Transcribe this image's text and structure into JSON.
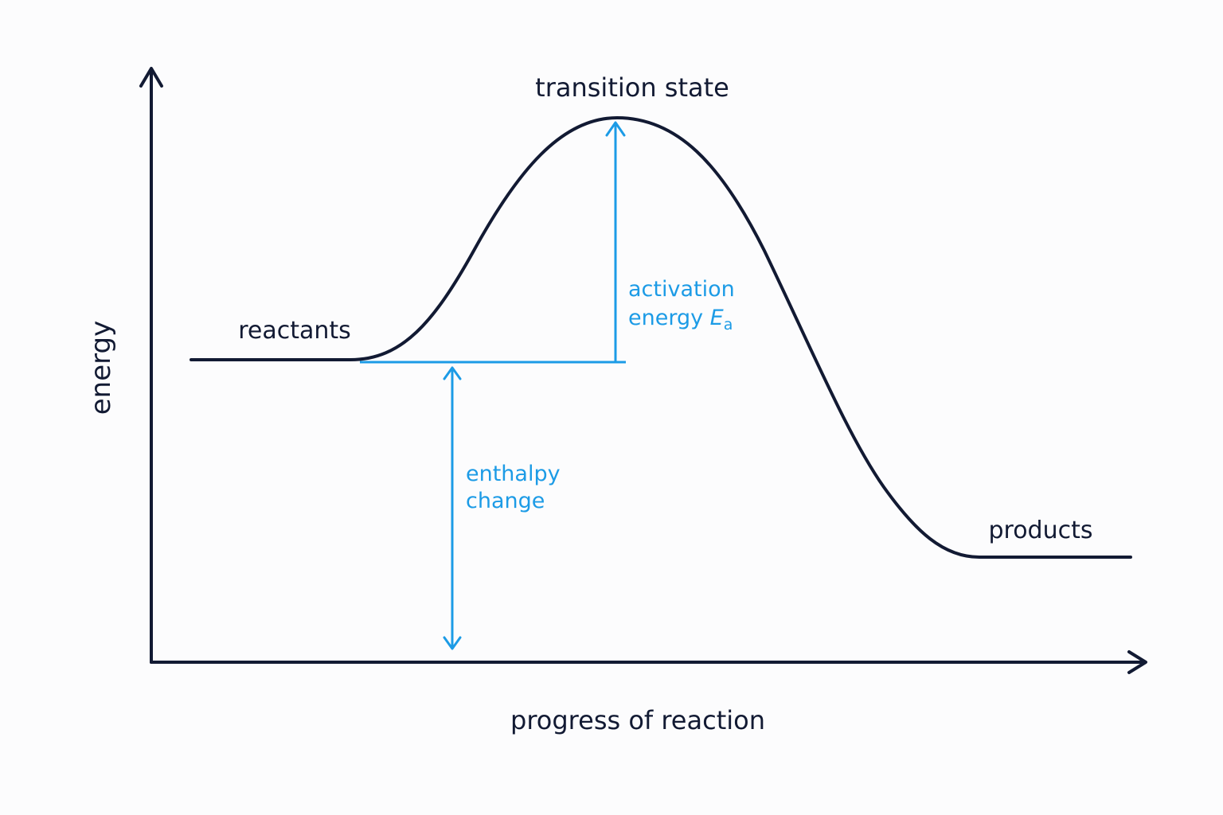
{
  "diagram": {
    "axes": {
      "y_label": "energy",
      "x_label": "progress of reaction"
    },
    "labels": {
      "transition_state": "transition state",
      "reactants": "reactants",
      "products": "products",
      "activation_line1": "activation",
      "activation_line2_word": "energy ",
      "activation_symbol": "E",
      "activation_subscript": "a",
      "enthalpy_line1": "enthalpy",
      "enthalpy_line2": "change"
    },
    "colors": {
      "curve": "#121a33",
      "axes": "#121a33",
      "annotation": "#1c9be6",
      "background": "#fcfcfd"
    }
  }
}
